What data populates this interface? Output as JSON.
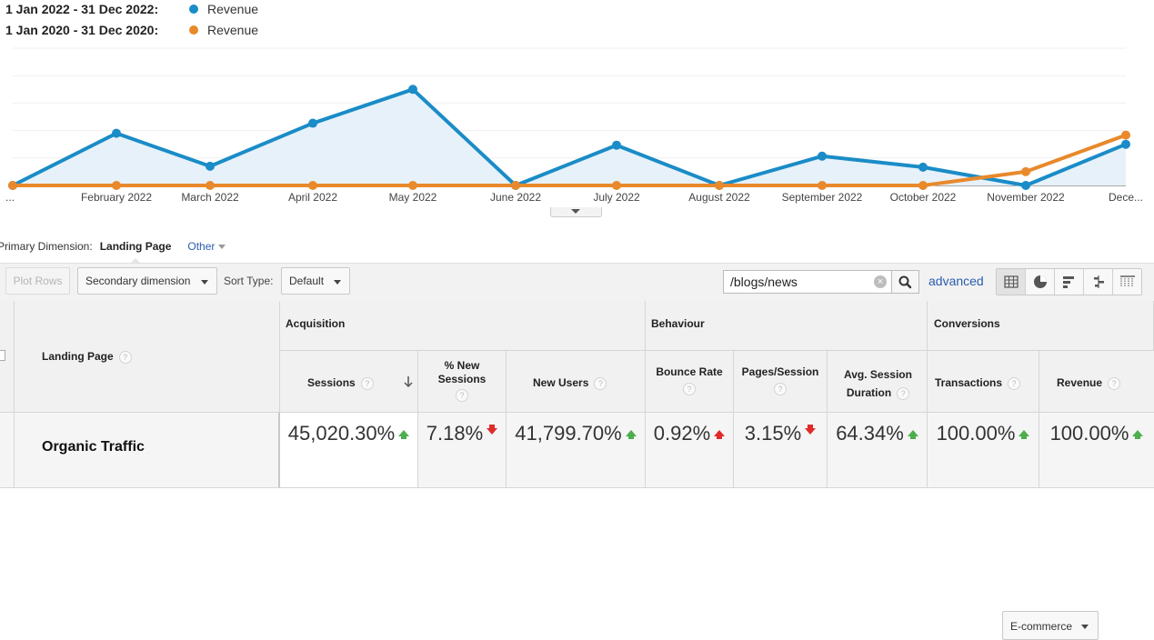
{
  "legend": [
    {
      "date_range": "1 Jan 2022 - 31 Dec 2022:",
      "metric": "Revenue",
      "color": "#1a8cc7"
    },
    {
      "date_range": "1 Jan 2020 - 31 Dec 2020:",
      "metric": "Revenue",
      "color": "#e8892b"
    }
  ],
  "chart_data": {
    "type": "line",
    "categories": [
      "...",
      "February 2022",
      "March 2022",
      "April 2022",
      "May 2022",
      "June 2022",
      "July 2022",
      "August 2022",
      "September 2022",
      "October 2022",
      "November 2022",
      "Dece..."
    ],
    "series": [
      {
        "name": "Revenue",
        "period": "1 Jan 2022 - 31 Dec 2022",
        "color": "#1a8cc7",
        "area": true,
        "values": [
          0,
          57,
          21,
          68,
          105,
          0,
          44,
          0,
          32,
          20,
          0,
          45
        ]
      },
      {
        "name": "Revenue",
        "period": "1 Jan 2020 - 31 Dec 2020",
        "color": "#e8892b",
        "values": [
          0,
          0,
          0,
          0,
          0,
          0,
          0,
          0,
          0,
          0,
          15,
          55
        ]
      }
    ],
    "ylim": [
      0,
      150
    ],
    "grid": true
  },
  "primary_dimension": {
    "label": "Primary Dimension:",
    "active": "Landing Page",
    "other": "Other"
  },
  "toolbar": {
    "plot_rows": "Plot Rows",
    "secondary_dimension": "Secondary dimension",
    "sort_type_label": "Sort Type:",
    "sort_type_value": "Default",
    "search_value": "/blogs/news",
    "advanced": "advanced"
  },
  "table": {
    "dimension_header": "Landing Page",
    "groups": {
      "acquisition": "Acquisition",
      "behaviour": "Behaviour",
      "conversions": "Conversions",
      "conversions_select": "E-commerce"
    },
    "columns": {
      "sessions": "Sessions",
      "pct_new_sessions": "% New Sessions",
      "new_users": "New Users",
      "bounce_rate": "Bounce Rate",
      "pages_session": "Pages/Session",
      "avg_duration": "Avg. Session Duration",
      "transactions": "Transactions",
      "revenue": "Revenue"
    },
    "row": {
      "label": "Organic Traffic",
      "sessions": "45,020.30%",
      "pct_new_sessions": "7.18%",
      "new_users": "41,799.70%",
      "bounce_rate": "0.92%",
      "pages_session": "3.15%",
      "avg_duration": "64.34%",
      "transactions": "100.00%",
      "revenue": "100.00%"
    }
  }
}
